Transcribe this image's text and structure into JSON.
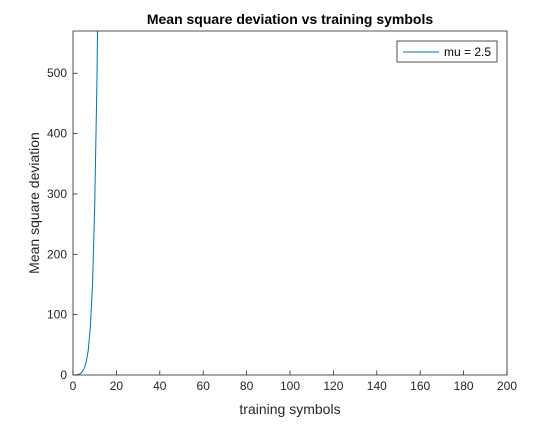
{
  "chart_data": {
    "type": "line",
    "title": "Mean square deviation vs training symbols",
    "xlabel": "training symbols",
    "ylabel": "Mean square deviation",
    "xlim": [
      0,
      200
    ],
    "ylim": [
      0,
      570
    ],
    "xticks": [
      0,
      20,
      40,
      60,
      80,
      100,
      120,
      140,
      160,
      180,
      200
    ],
    "yticks": [
      0,
      100,
      200,
      300,
      400,
      500
    ],
    "grid": false,
    "legend_position": "top-right",
    "series": [
      {
        "name": "mu = 2.5",
        "color": "#0072BD",
        "x": [
          1,
          2,
          3,
          4,
          5,
          6,
          7,
          8,
          9,
          10,
          11,
          11.3
        ],
        "y": [
          0,
          0.5,
          1.5,
          4,
          10,
          20,
          40,
          80,
          150,
          280,
          480,
          570
        ]
      }
    ]
  }
}
